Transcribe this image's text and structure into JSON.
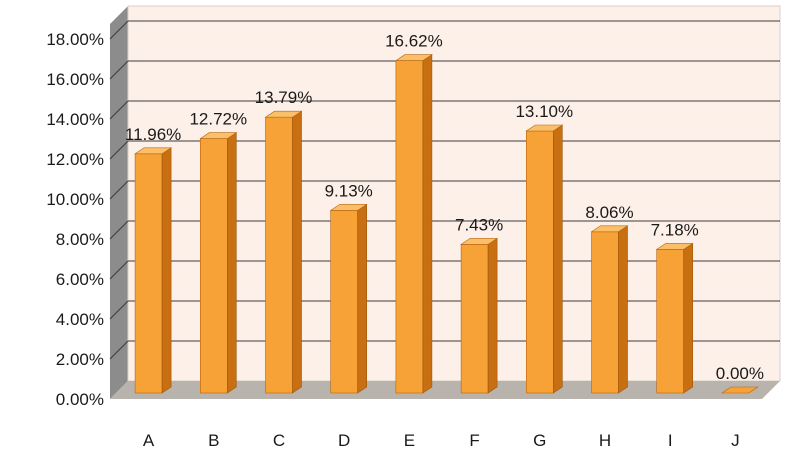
{
  "chart_data": {
    "type": "bar",
    "categories": [
      "A",
      "B",
      "C",
      "D",
      "E",
      "F",
      "G",
      "H",
      "I",
      "J"
    ],
    "values": [
      11.96,
      12.72,
      13.79,
      9.13,
      16.62,
      7.43,
      13.1,
      8.06,
      7.18,
      0.0
    ],
    "data_labels": [
      "11.96%",
      "12.72%",
      "13.79%",
      "9.13%",
      "16.62%",
      "7.43%",
      "13.10%",
      "8.06%",
      "7.18%",
      "0.00%"
    ],
    "y_ticks": [
      0,
      2,
      4,
      6,
      8,
      10,
      12,
      14,
      16,
      18
    ],
    "y_tick_labels": [
      "0.00%",
      "2.00%",
      "4.00%",
      "6.00%",
      "8.00%",
      "10.00%",
      "12.00%",
      "14.00%",
      "16.00%",
      "18.00%"
    ],
    "ylim": [
      0,
      18
    ],
    "grid": true,
    "legend": "none",
    "title": "",
    "xlabel": "",
    "ylabel": "",
    "colors": {
      "bar_front": "#f7a236",
      "bar_side": "#c86f12",
      "bar_top": "#fbbf6a",
      "wall_back": "#fdf0e8",
      "wall_side": "#8c8c8c",
      "floor": "#b9b3ae",
      "gridline": "#3a3a3a"
    }
  }
}
